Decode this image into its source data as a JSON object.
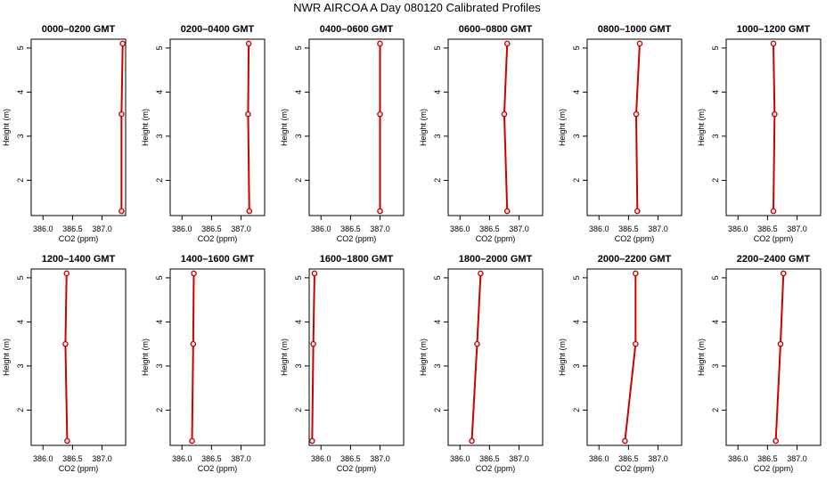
{
  "figure_title": "NWR AIRCOA A  Day 080120  Calibrated Profiles",
  "chart_data": [
    {
      "type": "line",
      "title": "0000–0200 GMT",
      "xlabel": "CO2 (ppm)",
      "ylabel": "Height (m)",
      "xlim": [
        385.8,
        387.4
      ],
      "ylim": [
        1.2,
        5.2
      ],
      "xticks": [
        "386.0",
        "386.5",
        "387.0"
      ],
      "yticks": [
        "2",
        "3",
        "4",
        "5"
      ],
      "grid": false,
      "color": "#cc0000",
      "x": [
        387.35,
        387.33,
        387.33
      ],
      "y": [
        5.1,
        3.5,
        1.3
      ]
    },
    {
      "type": "line",
      "title": "0200–0400 GMT",
      "xlabel": "CO2 (ppm)",
      "ylabel": "Height (m)",
      "xlim": [
        385.8,
        387.4
      ],
      "ylim": [
        1.2,
        5.2
      ],
      "xticks": [
        "386.0",
        "386.5",
        "387.0"
      ],
      "yticks": [
        "2",
        "3",
        "4",
        "5"
      ],
      "grid": false,
      "color": "#cc0000",
      "x": [
        387.13,
        387.12,
        387.14
      ],
      "y": [
        5.1,
        3.5,
        1.3
      ]
    },
    {
      "type": "line",
      "title": "0400–0600 GMT",
      "xlabel": "CO2 (ppm)",
      "ylabel": "Height (m)",
      "xlim": [
        385.8,
        387.4
      ],
      "ylim": [
        1.2,
        5.2
      ],
      "xticks": [
        "386.0",
        "386.5",
        "387.0"
      ],
      "yticks": [
        "2",
        "3",
        "4",
        "5"
      ],
      "grid": false,
      "color": "#cc0000",
      "x": [
        387.0,
        387.0,
        387.0
      ],
      "y": [
        5.1,
        3.5,
        1.3
      ]
    },
    {
      "type": "line",
      "title": "0600–0800 GMT",
      "xlabel": "CO2 (ppm)",
      "ylabel": "Height (m)",
      "xlim": [
        385.8,
        387.4
      ],
      "ylim": [
        1.2,
        5.2
      ],
      "xticks": [
        "386.0",
        "386.5",
        "387.0"
      ],
      "yticks": [
        "2",
        "3",
        "4",
        "5"
      ],
      "grid": false,
      "color": "#cc0000",
      "x": [
        386.8,
        386.75,
        386.8
      ],
      "y": [
        5.1,
        3.5,
        1.3
      ]
    },
    {
      "type": "line",
      "title": "0800–1000 GMT",
      "xlabel": "CO2 (ppm)",
      "ylabel": "Height (m)",
      "xlim": [
        385.8,
        387.4
      ],
      "ylim": [
        1.2,
        5.2
      ],
      "xticks": [
        "386.0",
        "386.5",
        "387.0"
      ],
      "yticks": [
        "2",
        "3",
        "4",
        "5"
      ],
      "grid": false,
      "color": "#cc0000",
      "x": [
        386.69,
        386.63,
        386.65
      ],
      "y": [
        5.1,
        3.5,
        1.3
      ]
    },
    {
      "type": "line",
      "title": "1000–1200 GMT",
      "xlabel": "CO2 (ppm)",
      "ylabel": "Height (m)",
      "xlim": [
        385.8,
        387.4
      ],
      "ylim": [
        1.2,
        5.2
      ],
      "xticks": [
        "386.0",
        "386.5",
        "387.0"
      ],
      "yticks": [
        "2",
        "3",
        "4",
        "5"
      ],
      "grid": false,
      "color": "#cc0000",
      "x": [
        386.6,
        386.62,
        386.6
      ],
      "y": [
        5.1,
        3.5,
        1.3
      ]
    },
    {
      "type": "line",
      "title": "1200–1400 GMT",
      "xlabel": "CO2 (ppm)",
      "ylabel": "Height (m)",
      "xlim": [
        385.8,
        387.4
      ],
      "ylim": [
        1.2,
        5.2
      ],
      "xticks": [
        "386.0",
        "386.5",
        "387.0"
      ],
      "yticks": [
        "2",
        "3",
        "4",
        "5"
      ],
      "grid": false,
      "color": "#cc0000",
      "x": [
        386.4,
        386.38,
        386.41
      ],
      "y": [
        5.1,
        3.5,
        1.3
      ]
    },
    {
      "type": "line",
      "title": "1400–1600 GMT",
      "xlabel": "CO2 (ppm)",
      "ylabel": "Height (m)",
      "xlim": [
        385.8,
        387.4
      ],
      "ylim": [
        1.2,
        5.2
      ],
      "xticks": [
        "386.0",
        "386.5",
        "387.0"
      ],
      "yticks": [
        "2",
        "3",
        "4",
        "5"
      ],
      "grid": false,
      "color": "#cc0000",
      "x": [
        386.2,
        386.19,
        386.17
      ],
      "y": [
        5.1,
        3.5,
        1.3
      ]
    },
    {
      "type": "line",
      "title": "1600–1800 GMT",
      "xlabel": "CO2 (ppm)",
      "ylabel": "Height (m)",
      "xlim": [
        385.8,
        387.4
      ],
      "ylim": [
        1.2,
        5.2
      ],
      "xticks": [
        "386.0",
        "386.5",
        "387.0"
      ],
      "yticks": [
        "2",
        "3",
        "4",
        "5"
      ],
      "grid": false,
      "color": "#cc0000",
      "x": [
        385.89,
        385.87,
        385.85
      ],
      "y": [
        5.1,
        3.5,
        1.3
      ]
    },
    {
      "type": "line",
      "title": "1800–2000 GMT",
      "xlabel": "CO2 (ppm)",
      "ylabel": "Height (m)",
      "xlim": [
        385.8,
        387.4
      ],
      "ylim": [
        1.2,
        5.2
      ],
      "xticks": [
        "386.0",
        "386.5",
        "387.0"
      ],
      "yticks": [
        "2",
        "3",
        "4",
        "5"
      ],
      "grid": false,
      "color": "#cc0000",
      "x": [
        386.35,
        386.29,
        386.2
      ],
      "y": [
        5.1,
        3.5,
        1.3
      ]
    },
    {
      "type": "line",
      "title": "2000–2200 GMT",
      "xlabel": "CO2 (ppm)",
      "ylabel": "Height (m)",
      "xlim": [
        385.8,
        387.4
      ],
      "ylim": [
        1.2,
        5.2
      ],
      "xticks": [
        "386.0",
        "386.5",
        "387.0"
      ],
      "yticks": [
        "2",
        "3",
        "4",
        "5"
      ],
      "grid": false,
      "color": "#cc0000",
      "x": [
        386.62,
        386.62,
        386.44
      ],
      "y": [
        5.1,
        3.5,
        1.3
      ]
    },
    {
      "type": "line",
      "title": "2200–2400 GMT",
      "xlabel": "CO2 (ppm)",
      "ylabel": "Height (m)",
      "xlim": [
        385.8,
        387.4
      ],
      "ylim": [
        1.2,
        5.2
      ],
      "xticks": [
        "386.0",
        "386.5",
        "387.0"
      ],
      "yticks": [
        "2",
        "3",
        "4",
        "5"
      ],
      "grid": false,
      "color": "#cc0000",
      "x": [
        386.77,
        386.72,
        386.64
      ],
      "y": [
        5.1,
        3.5,
        1.3
      ]
    }
  ]
}
